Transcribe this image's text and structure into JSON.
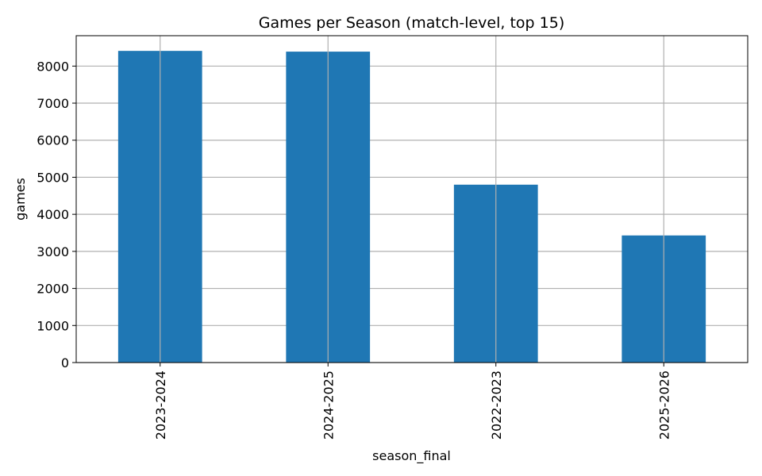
{
  "chart_data": {
    "type": "bar",
    "title": "Games per Season (match-level, top 15)",
    "xlabel": "season_final",
    "ylabel": "games",
    "categories": [
      "2023-2024",
      "2024-2025",
      "2022-2023",
      "2025-2026"
    ],
    "values": [
      8410,
      8390,
      4800,
      3430
    ],
    "ylim": [
      0,
      8820
    ],
    "yticks": [
      0,
      1000,
      2000,
      3000,
      4000,
      5000,
      6000,
      7000,
      8000
    ],
    "grid": true,
    "legend": "none",
    "bar_color": "#1f77b4",
    "grid_color": "#b0b0b0",
    "x_tick_rotation": "vertical"
  }
}
